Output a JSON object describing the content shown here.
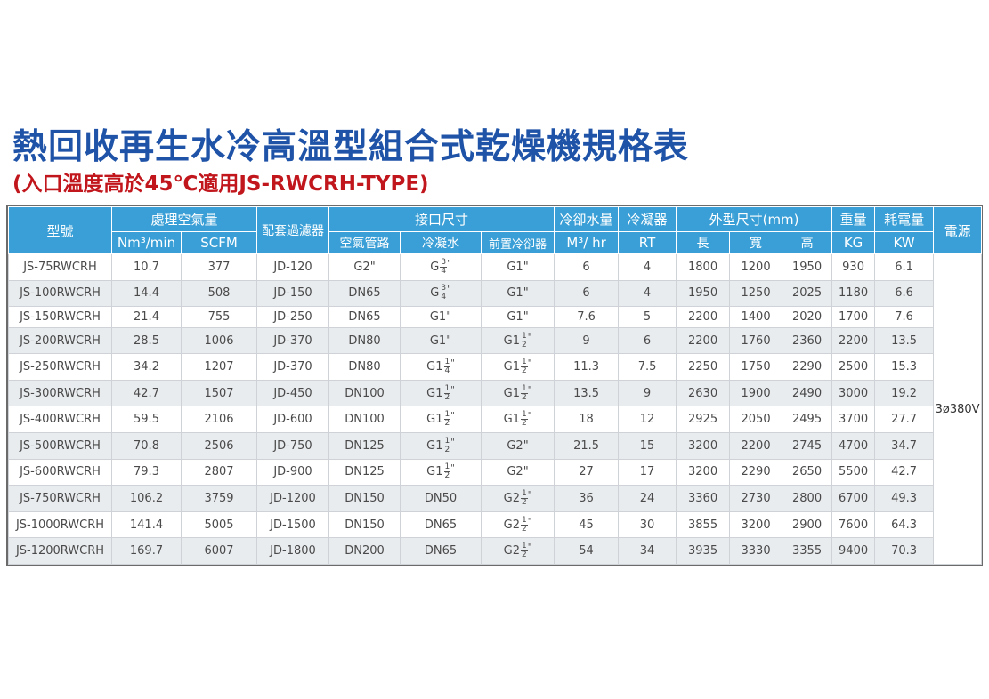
{
  "title": "熱回收再生水冷高溫型組合式乾燥機規格表",
  "subtitle": "(入口溫度高於45℃適用JS-RWCRH-TYPE)",
  "header": {
    "model": "型號",
    "air_volume": "處理空氣量",
    "filter": "配套過濾器",
    "connection": "接口尺寸",
    "cooling_water": "冷卻水量",
    "condenser": "冷凝器",
    "dimensions": "外型尺寸(mm)",
    "weight": "重量",
    "power_consumption": "耗電量",
    "power_supply": "電源",
    "nm3_unit": "Nm³/min",
    "scfm_unit": "SCFM",
    "air_pipe": "空氣管路",
    "condensate": "冷凝水",
    "precooler": "前置冷卻器",
    "water_unit": "M³/ hr",
    "rt_unit": "RT",
    "length": "長",
    "width": "寬",
    "height": "高",
    "kg_unit": "KG",
    "kw_unit": "KW"
  },
  "power_supply_value": "3ø380V",
  "rows": [
    {
      "model": "JS-75RWCRH",
      "nm3": "10.7",
      "scfm": "377",
      "filter": "JD-120",
      "air_pipe": "G2\"",
      "condensate": {
        "pre": "G",
        "num": "3",
        "den": "4",
        "post": "\""
      },
      "precooler": "G1\"",
      "water": "6",
      "rt": "4",
      "l": "1800",
      "w": "1200",
      "h": "1950",
      "kg": "930",
      "kw": "6.1"
    },
    {
      "model": "JS-100RWCRH",
      "nm3": "14.4",
      "scfm": "508",
      "filter": "JD-150",
      "air_pipe": "DN65",
      "condensate": {
        "pre": "G",
        "num": "3",
        "den": "4",
        "post": "\""
      },
      "precooler": "G1\"",
      "water": "6",
      "rt": "4",
      "l": "1950",
      "w": "1250",
      "h": "2025",
      "kg": "1180",
      "kw": "6.6"
    },
    {
      "model": "JS-150RWCRH",
      "nm3": "21.4",
      "scfm": "755",
      "filter": "JD-250",
      "air_pipe": "DN65",
      "condensate": "G1\"",
      "precooler": "G1\"",
      "water": "7.6",
      "rt": "5",
      "l": "2200",
      "w": "1400",
      "h": "2020",
      "kg": "1700",
      "kw": "7.6"
    },
    {
      "model": "JS-200RWCRH",
      "nm3": "28.5",
      "scfm": "1006",
      "filter": "JD-370",
      "air_pipe": "DN80",
      "condensate": "G1\"",
      "precooler": {
        "pre": "G1",
        "num": "1",
        "den": "2",
        "post": "\""
      },
      "water": "9",
      "rt": "6",
      "l": "2200",
      "w": "1760",
      "h": "2360",
      "kg": "2200",
      "kw": "13.5"
    },
    {
      "model": "JS-250RWCRH",
      "nm3": "34.2",
      "scfm": "1207",
      "filter": "JD-370",
      "air_pipe": "DN80",
      "condensate": {
        "pre": "G1",
        "num": "1",
        "den": "4",
        "post": "\""
      },
      "precooler": {
        "pre": "G1",
        "num": "1",
        "den": "2",
        "post": "\""
      },
      "water": "11.3",
      "rt": "7.5",
      "l": "2250",
      "w": "1750",
      "h": "2290",
      "kg": "2500",
      "kw": "15.3"
    },
    {
      "model": "JS-300RWCRH",
      "nm3": "42.7",
      "scfm": "1507",
      "filter": "JD-450",
      "air_pipe": "DN100",
      "condensate": {
        "pre": "G1",
        "num": "1",
        "den": "2",
        "post": "\""
      },
      "precooler": {
        "pre": "G1",
        "num": "1",
        "den": "2",
        "post": "\""
      },
      "water": "13.5",
      "rt": "9",
      "l": "2630",
      "w": "1900",
      "h": "2490",
      "kg": "3000",
      "kw": "19.2"
    },
    {
      "model": "JS-400RWCRH",
      "nm3": "59.5",
      "scfm": "2106",
      "filter": "JD-600",
      "air_pipe": "DN100",
      "condensate": {
        "pre": "G1",
        "num": "1",
        "den": "2",
        "post": "\""
      },
      "precooler": {
        "pre": "G1",
        "num": "1",
        "den": "2",
        "post": "\""
      },
      "water": "18",
      "rt": "12",
      "l": "2925",
      "w": "2050",
      "h": "2495",
      "kg": "3700",
      "kw": "27.7"
    },
    {
      "model": "JS-500RWCRH",
      "nm3": "70.8",
      "scfm": "2506",
      "filter": "JD-750",
      "air_pipe": "DN125",
      "condensate": {
        "pre": "G1",
        "num": "1",
        "den": "2",
        "post": "\""
      },
      "precooler": "G2\"",
      "water": "21.5",
      "rt": "15",
      "l": "3200",
      "w": "2200",
      "h": "2745",
      "kg": "4700",
      "kw": "34.7"
    },
    {
      "model": "JS-600RWCRH",
      "nm3": "79.3",
      "scfm": "2807",
      "filter": "JD-900",
      "air_pipe": "DN125",
      "condensate": {
        "pre": "G1",
        "num": "1",
        "den": "2",
        "post": "\""
      },
      "precooler": "G2\"",
      "water": "27",
      "rt": "17",
      "l": "3200",
      "w": "2290",
      "h": "2650",
      "kg": "5500",
      "kw": "42.7"
    },
    {
      "model": "JS-750RWCRH",
      "nm3": "106.2",
      "scfm": "3759",
      "filter": "JD-1200",
      "air_pipe": "DN150",
      "condensate": "DN50",
      "precooler": {
        "pre": "G2",
        "num": "1",
        "den": "2",
        "post": "\""
      },
      "water": "36",
      "rt": "24",
      "l": "3360",
      "w": "2730",
      "h": "2800",
      "kg": "6700",
      "kw": "49.3"
    },
    {
      "model": "JS-1000RWCRH",
      "nm3": "141.4",
      "scfm": "5005",
      "filter": "JD-1500",
      "air_pipe": "DN150",
      "condensate": "DN65",
      "precooler": {
        "pre": "G2",
        "num": "1",
        "den": "2",
        "post": "\""
      },
      "water": "45",
      "rt": "30",
      "l": "3855",
      "w": "3200",
      "h": "2900",
      "kg": "7600",
      "kw": "64.3"
    },
    {
      "model": "JS-1200RWCRH",
      "nm3": "169.7",
      "scfm": "6007",
      "filter": "JD-1800",
      "air_pipe": "DN200",
      "condensate": "DN65",
      "precooler": {
        "pre": "G2",
        "num": "1",
        "den": "2",
        "post": "\""
      },
      "water": "54",
      "rt": "34",
      "l": "3935",
      "w": "3330",
      "h": "3355",
      "kg": "9400",
      "kw": "70.3"
    }
  ],
  "colors": {
    "title": "#1f53a8",
    "subtitle": "#c0161c",
    "header_bg": "#3a9fd6",
    "stripe": "#e9ecef"
  }
}
